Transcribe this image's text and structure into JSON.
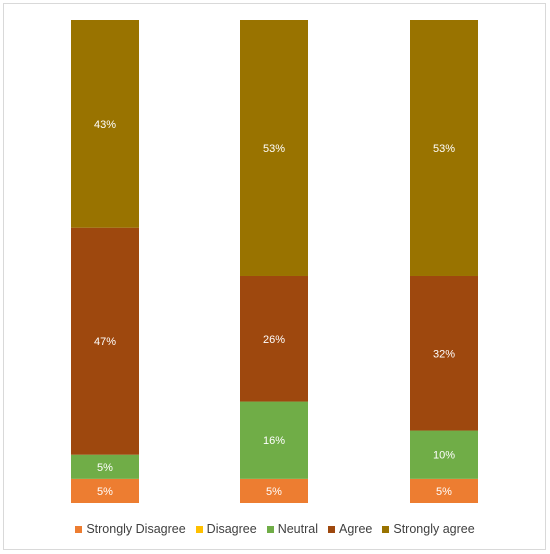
{
  "chart_data": {
    "type": "bar",
    "stacked": true,
    "percent_stacked": true,
    "categories": [
      "",
      "",
      ""
    ],
    "series": [
      {
        "name": "Strongly Disagree",
        "color": "#ED7D31",
        "values": [
          5,
          5,
          5
        ],
        "labels": [
          "5%",
          "5%",
          "5%"
        ]
      },
      {
        "name": "Disagree",
        "color": "#FFC000",
        "values": [
          0,
          0,
          0
        ],
        "labels": [
          "",
          "",
          ""
        ]
      },
      {
        "name": "Neutral",
        "color": "#70AD47",
        "values": [
          5,
          16,
          10
        ],
        "labels": [
          "5%",
          "16%",
          "10%"
        ]
      },
      {
        "name": "Agree",
        "color": "#9E480E",
        "values": [
          47,
          26,
          32
        ],
        "labels": [
          "47%",
          "26%",
          "32%"
        ]
      },
      {
        "name": "Strongly agree",
        "color": "#997300",
        "values": [
          43,
          53,
          53
        ],
        "labels": [
          "43%",
          "53%",
          "53%"
        ]
      }
    ],
    "ylim": [
      0,
      100
    ],
    "legend_position": "bottom",
    "grid": false
  }
}
